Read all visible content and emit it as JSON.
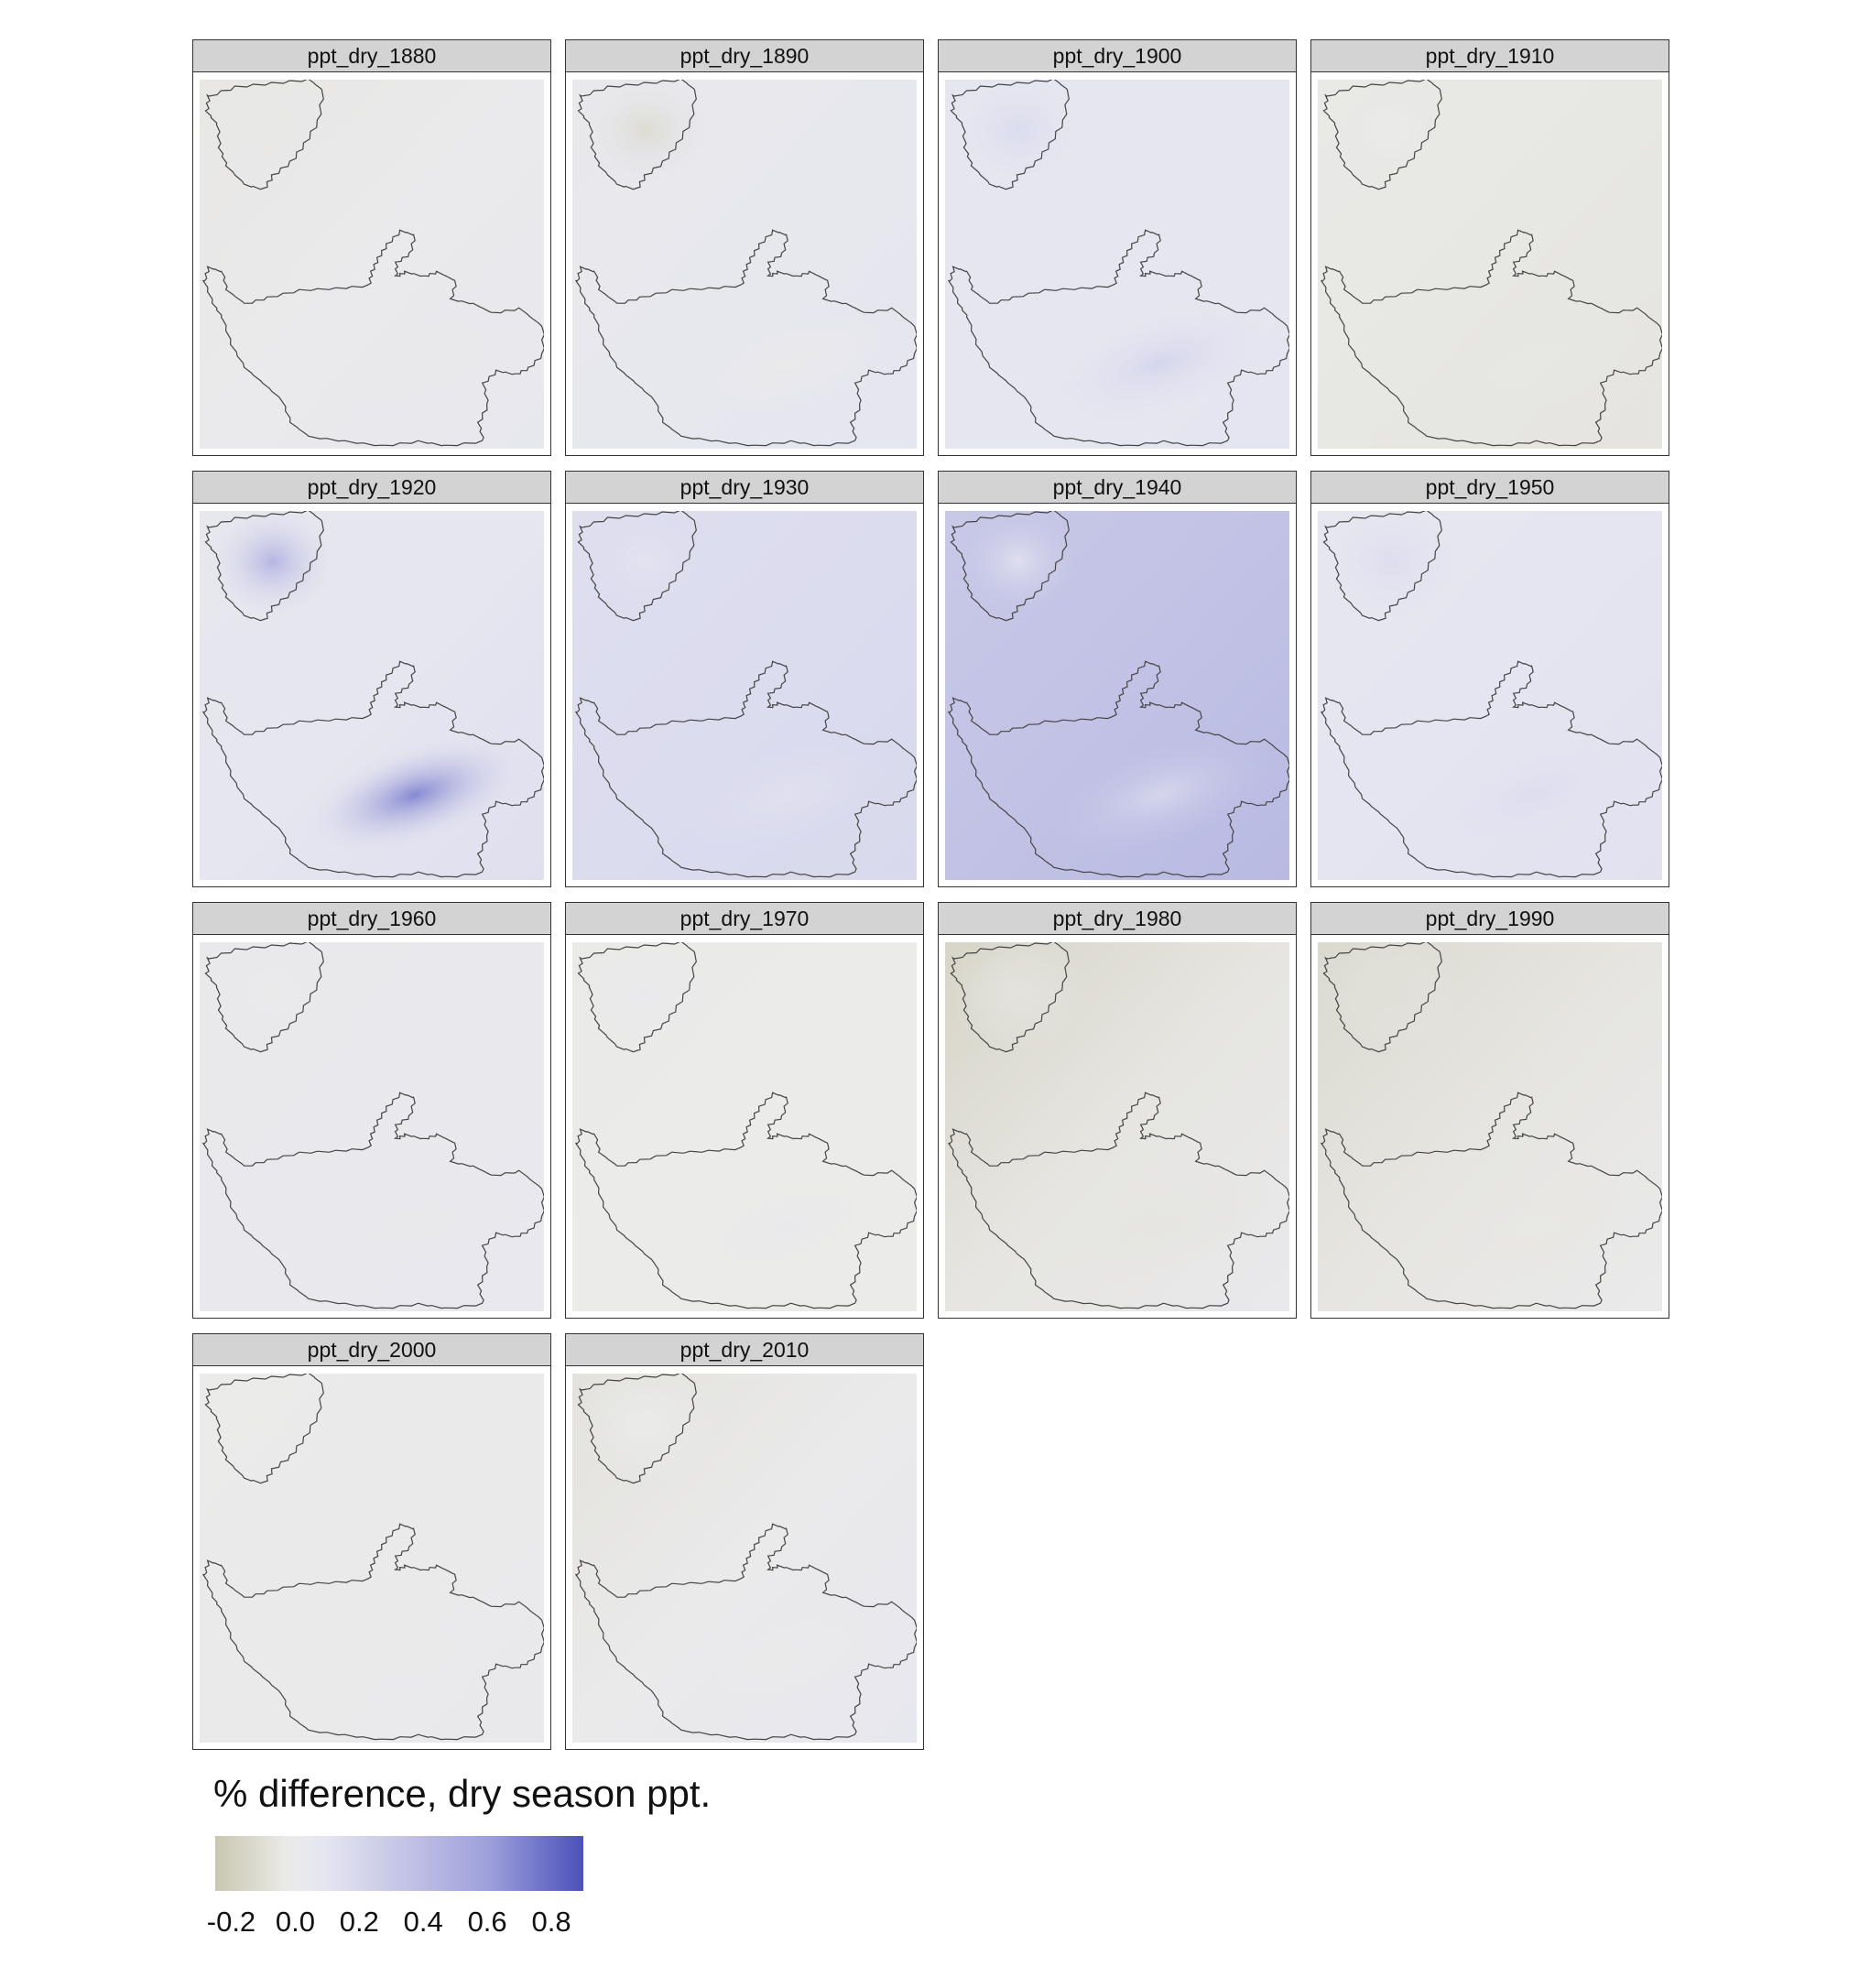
{
  "chart_data": {
    "type": "heatmap",
    "description_kind": "small-multiple raster maps",
    "legend": {
      "title": "% difference, dry season ppt.",
      "ticks": [
        "-0.2",
        "0.0",
        "0.2",
        "0.4",
        "0.6",
        "0.8"
      ],
      "tick_values": [
        -0.2,
        0.0,
        0.2,
        0.4,
        0.6,
        0.8
      ],
      "range": [
        -0.25,
        0.9
      ],
      "colors": {
        "low": "#c9c6b0",
        "zero": "#ebebea",
        "high": "#4b51b9"
      }
    },
    "panels": [
      {
        "label": "ppt_dry_1880",
        "base": 0.05,
        "gx": 0.15,
        "gy": 0.0,
        "lake": -0.07,
        "ridge": 0.02
      },
      {
        "label": "ppt_dry_1890",
        "base": 0.12,
        "gx": 0.12,
        "gy": 0.0,
        "lake": -0.22,
        "ridge": -0.1
      },
      {
        "label": "ppt_dry_1900",
        "base": 0.18,
        "gx": 0.02,
        "gy": 0.0,
        "lake": 0.08,
        "ridge": 0.12
      },
      {
        "label": "ppt_dry_1910",
        "base": -0.03,
        "gx": -0.06,
        "gy": 0.03,
        "lake": 0.04,
        "ridge": 0.0
      },
      {
        "label": "ppt_dry_1920",
        "base": 0.18,
        "gx": 0.12,
        "gy": 0.0,
        "lake": 0.3,
        "ridge": 0.5
      },
      {
        "label": "ppt_dry_1930",
        "base": 0.26,
        "gx": 0.03,
        "gy": 0.0,
        "lake": -0.05,
        "ridge": -0.03
      },
      {
        "label": "ppt_dry_1940",
        "base": 0.42,
        "gx": 0.08,
        "gy": 0.0,
        "lake": -0.18,
        "ridge": -0.12
      },
      {
        "label": "ppt_dry_1950",
        "base": 0.2,
        "gx": 0.05,
        "gy": 0.0,
        "lake": 0.05,
        "ridge": 0.05
      },
      {
        "label": "ppt_dry_1960",
        "base": 0.08,
        "gx": 0.0,
        "gy": 0.05,
        "lake": -0.05,
        "ridge": -0.02
      },
      {
        "label": "ppt_dry_1970",
        "base": 0.0,
        "gx": 0.02,
        "gy": 0.0,
        "lake": 0.08,
        "ridge": 0.06
      },
      {
        "label": "ppt_dry_1980",
        "base": -0.04,
        "gx": 0.26,
        "gy": -0.04,
        "lake": -0.02,
        "ridge": 0.0
      },
      {
        "label": "ppt_dry_1990",
        "base": -0.04,
        "gx": 0.1,
        "gy": 0.05,
        "lake": -0.04,
        "ridge": 0.02
      },
      {
        "label": "ppt_dry_2000",
        "base": 0.03,
        "gx": 0.0,
        "gy": 0.05,
        "lake": -0.02,
        "ridge": 0.0
      },
      {
        "label": "ppt_dry_2010",
        "base": 0.04,
        "gx": 0.08,
        "gy": 0.12,
        "lake": -0.03,
        "ridge": 0.0
      }
    ]
  }
}
